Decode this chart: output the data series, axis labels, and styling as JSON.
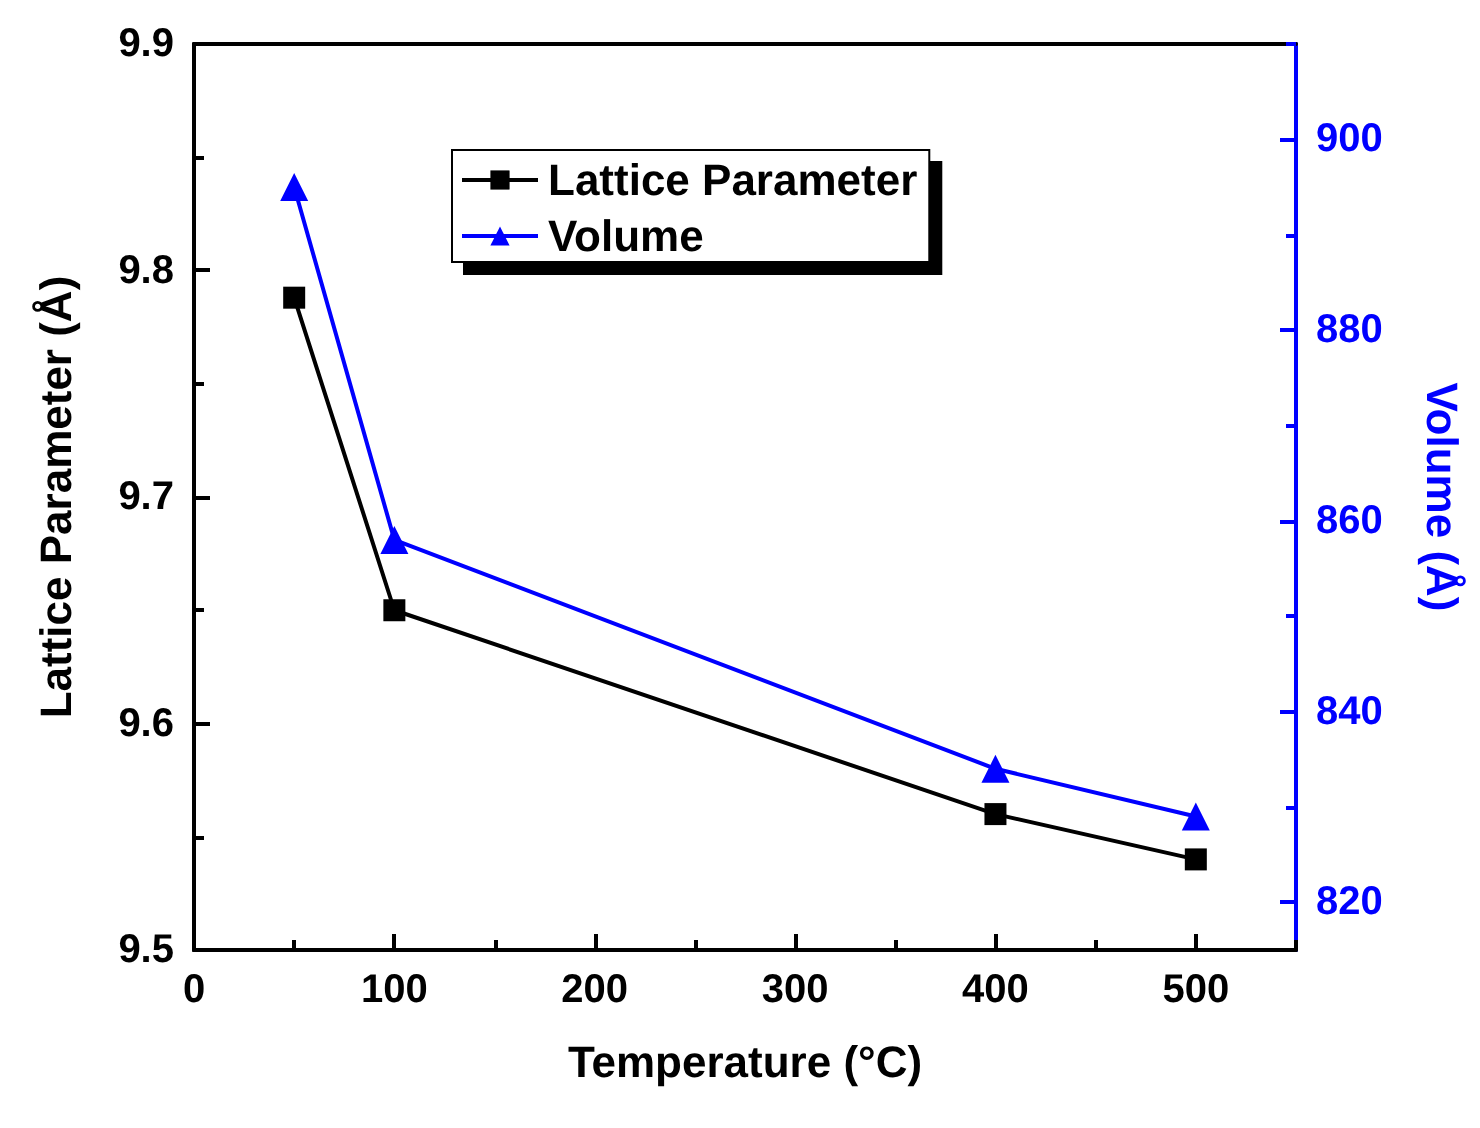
{
  "chart_data": {
    "type": "line",
    "xlabel": "Temperature (°C)",
    "ylabel": "Lattice Parameter (Å)",
    "y2label": "Volume (Å)",
    "x": [
      50,
      100,
      400,
      500
    ],
    "series": [
      {
        "name": "Lattice Parameter",
        "color": "#000000",
        "marker": "square",
        "values": [
          9.788,
          9.65,
          9.56,
          9.54
        ]
      },
      {
        "name": "Volume",
        "color": "#0000ff",
        "marker": "triangle",
        "axis": "y2",
        "values": [
          895,
          858,
          834,
          829
        ]
      }
    ],
    "xlim": [
      0,
      550
    ],
    "xticks": [
      0,
      100,
      200,
      300,
      400,
      500
    ],
    "ylim": [
      9.5,
      9.9
    ],
    "yticks": [
      9.5,
      9.6,
      9.7,
      9.8,
      9.9
    ],
    "y2lim": [
      815,
      910
    ],
    "y2ticks": [
      820,
      840,
      860,
      880,
      900
    ],
    "grid": false,
    "legend": "top",
    "line_style": "solid"
  }
}
